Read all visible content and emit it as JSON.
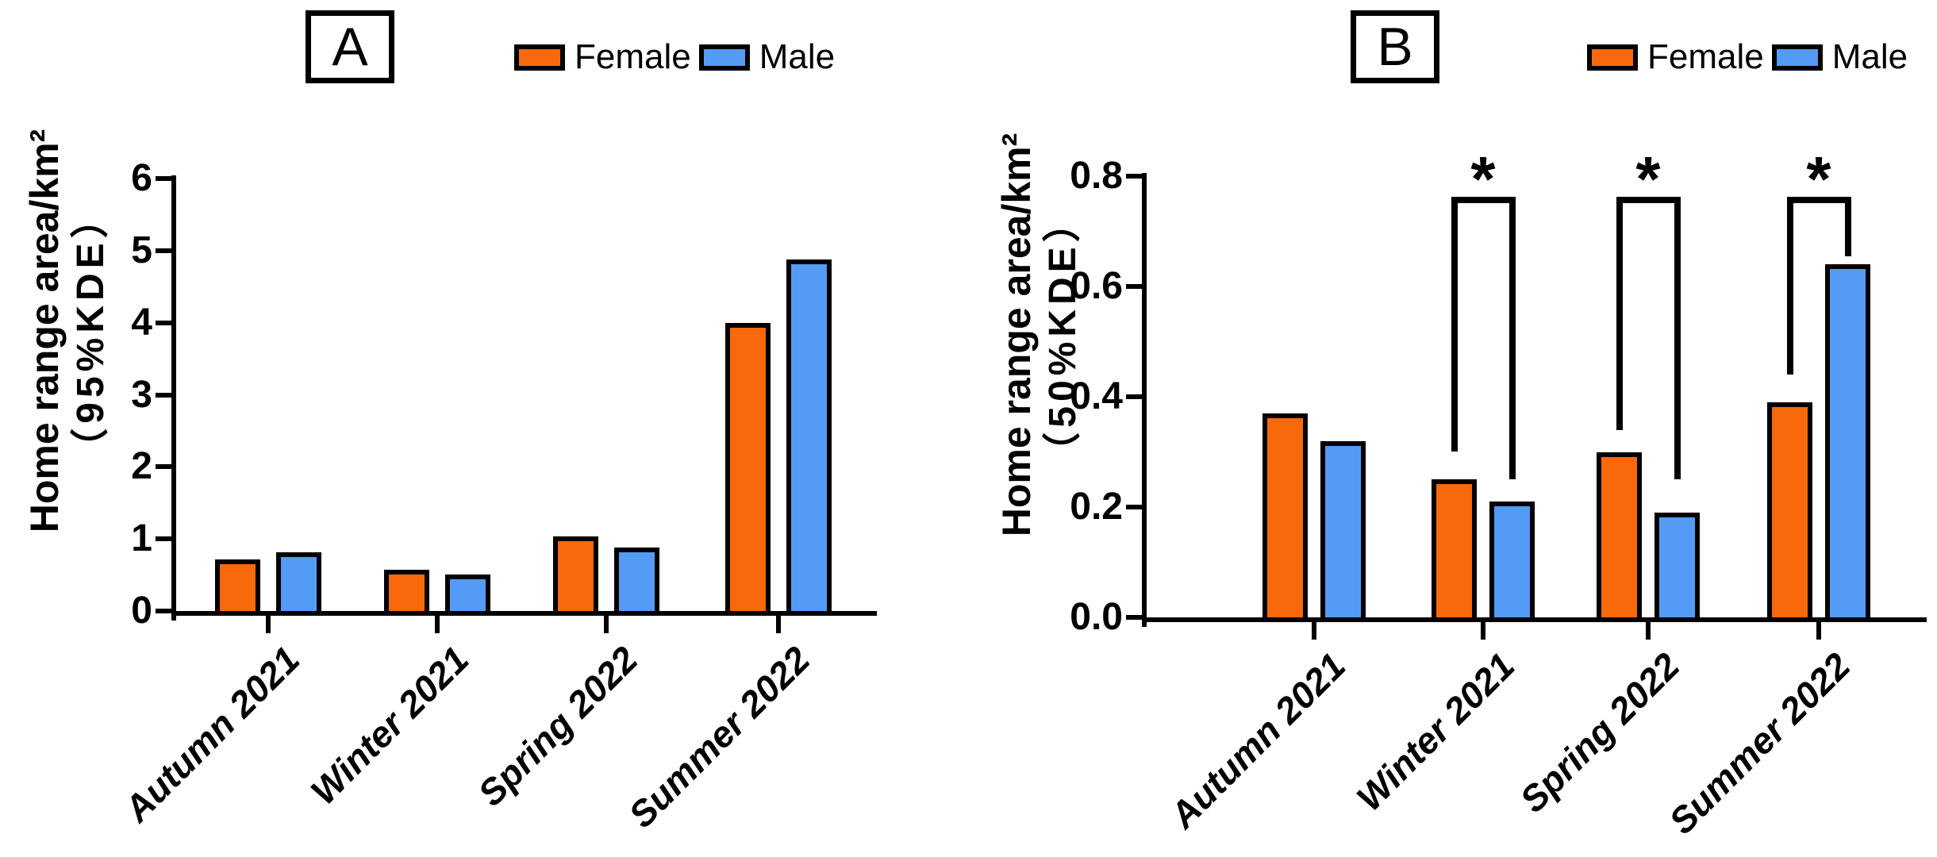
{
  "figure": {
    "description_visible_text_only": true
  },
  "chart_data": [
    {
      "type": "bar",
      "panel_label": "A",
      "y_title_line1": "Home range area/km²",
      "y_title_line2": "（95%KDE）",
      "categories": [
        "Autumn 2021",
        "Winter 2021",
        "Spring 2022",
        "Summer 2022"
      ],
      "series": [
        {
          "name": "Female",
          "color": "#F8690C",
          "values": [
            0.72,
            0.57,
            1.03,
            4.0
          ]
        },
        {
          "name": "Male",
          "color": "#549BF6",
          "values": [
            0.81,
            0.51,
            0.88,
            4.88
          ]
        }
      ],
      "ylim": [
        0,
        6
      ],
      "yticks": [
        "0",
        "1",
        "2",
        "3",
        "4",
        "5",
        "6"
      ],
      "xlabel": "",
      "ylabel": "Home range area/km² （95%KDE）",
      "grid": false,
      "legend_position": "top-right",
      "brackets": []
    },
    {
      "type": "bar",
      "panel_label": "B",
      "y_title_line1": "Home range area/km²",
      "y_title_line2": "（50%KDE）",
      "categories": [
        "Autumn 2021",
        "Winter 2021",
        "Spring 2022",
        "Summer 2022"
      ],
      "series": [
        {
          "name": "Female",
          "color": "#F8690C",
          "values": [
            0.37,
            0.25,
            0.3,
            0.39
          ]
        },
        {
          "name": "Male",
          "color": "#549BF6",
          "values": [
            0.32,
            0.21,
            0.19,
            0.64
          ]
        }
      ],
      "ylim": [
        0,
        0.8
      ],
      "yticks": [
        "0.0",
        "0.2",
        "0.4",
        "0.6",
        "0.8"
      ],
      "xlabel": "",
      "ylabel": "Home range area/km² （50%KDE）",
      "grid": false,
      "legend_position": "top-right",
      "brackets": [
        {
          "group": 1,
          "symbol": "*",
          "top": 0.763,
          "left_end": 0.3,
          "right_end": 0.25
        },
        {
          "group": 2,
          "symbol": "*",
          "top": 0.763,
          "left_end": 0.34,
          "right_end": 0.25
        },
        {
          "group": 3,
          "symbol": "*",
          "top": 0.763,
          "left_end": 0.44,
          "right_end": 0.655
        }
      ]
    }
  ]
}
